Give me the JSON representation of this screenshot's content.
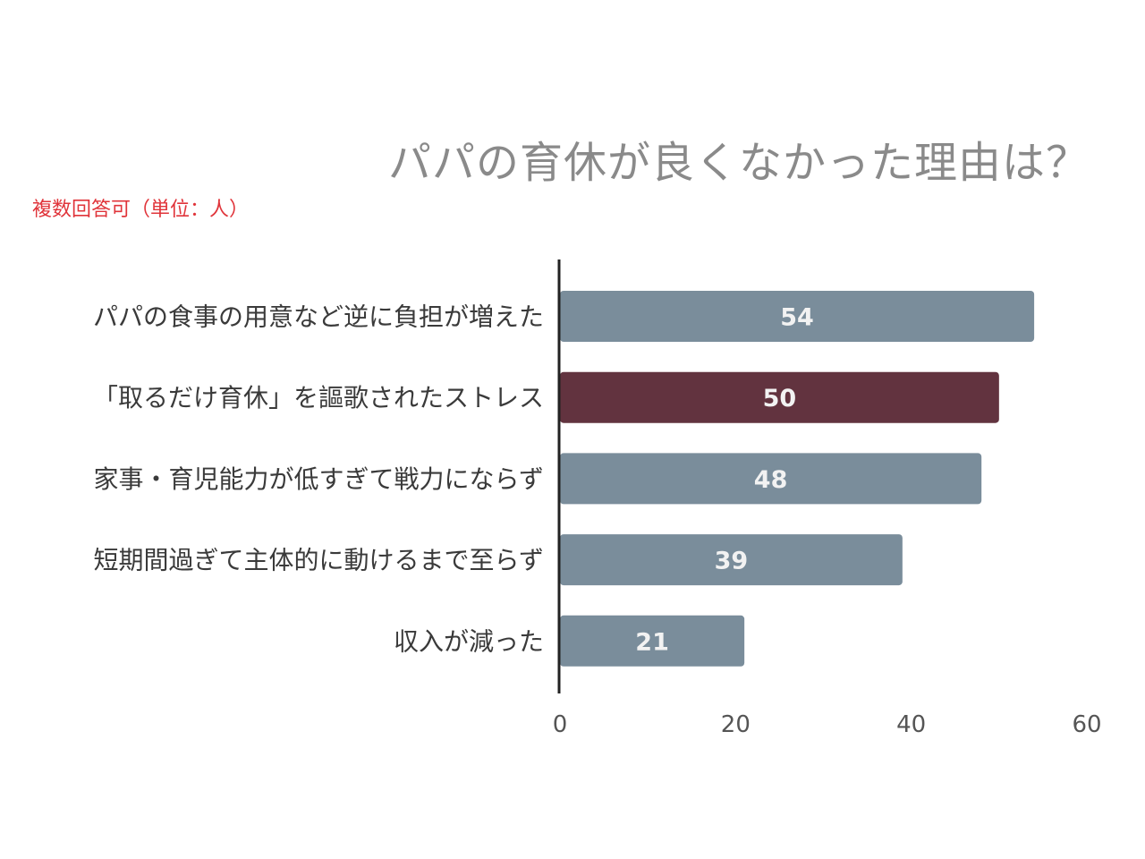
{
  "chart_data": {
    "type": "bar",
    "orientation": "horizontal",
    "title": "パパの育休が良くなかった理由は？",
    "subtitle": "複数回答可（単位：人）",
    "categories": [
      "パパの食事の用意など逆に負担が増えた",
      "「取るだけ育休」を謳歌されたストレス",
      "家事・育児能力が低すぎて戦力にならず",
      "短期間過ぎて主体的に動けるまで至らず",
      "収入が減った"
    ],
    "values": [
      54,
      50,
      48,
      39,
      21
    ],
    "highlight_index": 1,
    "xlim": [
      0,
      60
    ],
    "xticks": [
      "0",
      "20",
      "40",
      "60"
    ],
    "grid": false,
    "colors": {
      "bar": "#7a8d9b",
      "highlight": "#62333f",
      "title": "#8a8a8a",
      "subtitle": "#e0343a"
    }
  }
}
